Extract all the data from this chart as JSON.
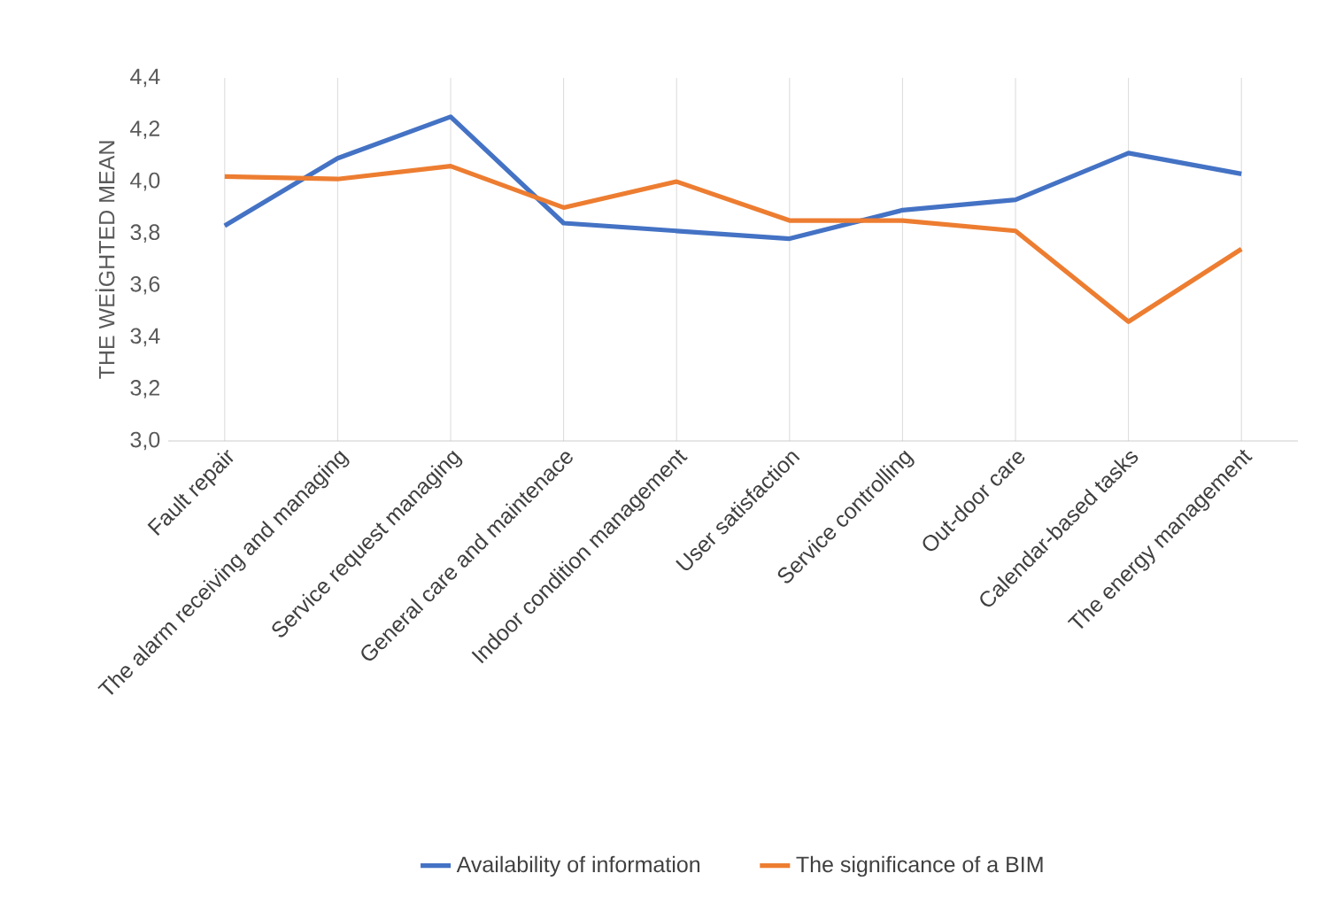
{
  "chart_data": {
    "type": "line",
    "ylabel": "THE WEİGHTED MEAN",
    "categories": [
      "Fault repair",
      "The alarm receiving and managing",
      "Service request managing",
      "General care and maintenace",
      "Indoor condition management",
      "User satisfaction",
      "Service controlling",
      "Out-door care",
      "Calendar-based tasks",
      "The energy management"
    ],
    "series": [
      {
        "name": "Availability of information",
        "color": "#4472c4",
        "values": [
          3.83,
          4.09,
          4.25,
          3.84,
          3.81,
          3.78,
          3.89,
          3.93,
          4.11,
          4.03
        ]
      },
      {
        "name": "The significance of a BIM",
        "color": "#ed7d31",
        "values": [
          4.02,
          4.01,
          4.06,
          3.9,
          4.0,
          3.85,
          3.85,
          3.81,
          3.46,
          3.74
        ]
      }
    ],
    "ylim": [
      3.0,
      4.4
    ],
    "yticks": [
      {
        "value": 3.0,
        "label": "3,0"
      },
      {
        "value": 3.2,
        "label": "3,2"
      },
      {
        "value": 3.4,
        "label": "3,4"
      },
      {
        "value": 3.6,
        "label": "3,6"
      },
      {
        "value": 3.8,
        "label": "3,8"
      },
      {
        "value": 4.0,
        "label": "4,0"
      },
      {
        "value": 4.2,
        "label": "4,2"
      },
      {
        "value": 4.4,
        "label": "4,4"
      }
    ],
    "grid": "x",
    "legend": "bottom",
    "marker": "none",
    "line_style": "solid"
  }
}
